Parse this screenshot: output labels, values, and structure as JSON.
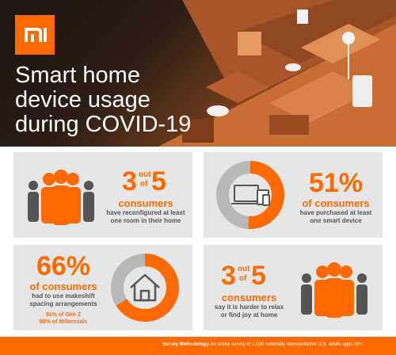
{
  "brand": {
    "logo_text": "mi",
    "accent": "#ff6900"
  },
  "hero": {
    "title_lines": [
      "Smart home",
      "device usage",
      "during COVID-19"
    ]
  },
  "stats": [
    {
      "prefix": "3",
      "mid": "out",
      "of": "of",
      "value": "5",
      "label": "consumers",
      "desc_lines": [
        "have reconfigured at least",
        "one room in their home"
      ]
    },
    {
      "value": "51%",
      "label": "of consumers",
      "desc_lines": [
        "have purchased at least",
        "one smart device"
      ]
    },
    {
      "value": "66%",
      "label": "of consumers",
      "desc_lines": [
        "had to use makeshift",
        "spacing arrangements"
      ],
      "extra_lines": [
        "91% of Gen Z",
        "80% of Millennials"
      ]
    },
    {
      "prefix": "3",
      "mid": "out",
      "of": "of",
      "value": "5",
      "label": "consumers",
      "desc_lines": [
        "say it is harder to relax",
        "or find joy at home"
      ]
    }
  ],
  "donuts": {
    "purchased_fraction": 0.51,
    "spacing_fraction": 0.66
  },
  "footer": {
    "label": "Survey Methodology",
    "text": "An online survey of 1,000 nationally representative U.S. adults ages 18+."
  }
}
